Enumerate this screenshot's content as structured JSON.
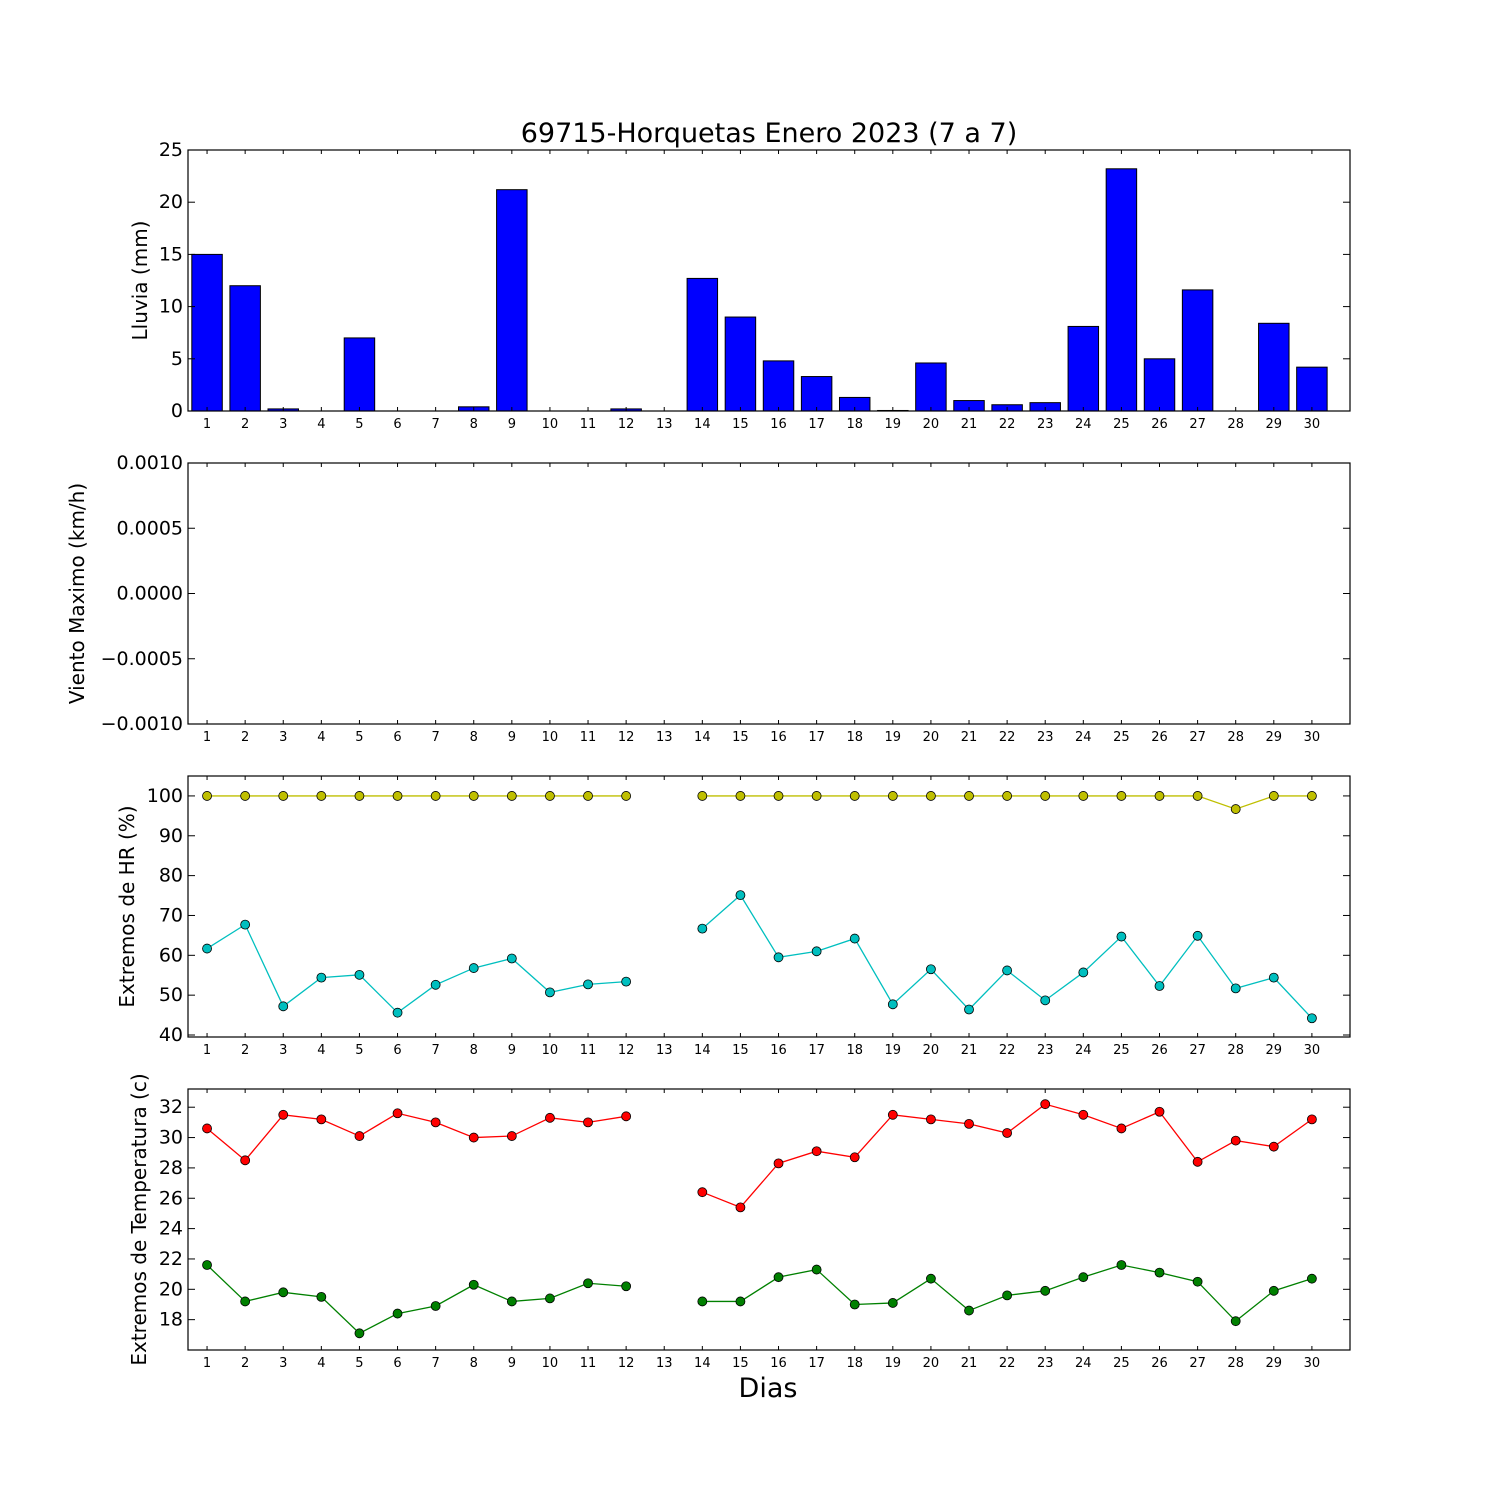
{
  "title": "69715-Horquetas Enero 2023  (7 a 7)",
  "xlabel": "Dias",
  "days": [
    1,
    2,
    3,
    4,
    5,
    6,
    7,
    8,
    9,
    10,
    11,
    12,
    13,
    14,
    15,
    16,
    17,
    18,
    19,
    20,
    21,
    22,
    23,
    24,
    25,
    26,
    27,
    28,
    29,
    30
  ],
  "colors": {
    "rain": "#0000ff",
    "hr_max": "#bfbf00",
    "hr_min": "#00bfbf",
    "t_max": "#ff0000",
    "t_min": "#008000"
  },
  "chart_data": [
    {
      "type": "bar",
      "title": "69715-Horquetas Enero 2023  (7 a 7)",
      "ylabel": "Lluvia (mm)",
      "ylim": [
        0,
        25
      ],
      "yticks": [
        "0",
        "5",
        "10",
        "15",
        "20",
        "25"
      ],
      "categories": [
        1,
        2,
        3,
        4,
        5,
        6,
        7,
        8,
        9,
        10,
        11,
        12,
        13,
        14,
        15,
        16,
        17,
        18,
        19,
        20,
        21,
        22,
        23,
        24,
        25,
        26,
        27,
        28,
        29,
        30
      ],
      "values": [
        15.0,
        12.0,
        0.2,
        0.0,
        7.0,
        0.0,
        0.0,
        0.4,
        21.2,
        0.0,
        0.0,
        0.2,
        0.0,
        12.7,
        9.0,
        4.8,
        3.3,
        1.3,
        0.05,
        4.6,
        1.0,
        0.6,
        0.8,
        8.1,
        23.2,
        5.0,
        11.6,
        0.0,
        8.4,
        4.2
      ]
    },
    {
      "type": "line",
      "ylabel": "Viento Maximo (km/h)",
      "ylim": [
        -0.001,
        0.001
      ],
      "yticks": [
        "−0.0010",
        "−0.0005",
        "0.0000",
        "0.0005",
        "0.0010"
      ],
      "x": [
        1,
        2,
        3,
        4,
        5,
        6,
        7,
        8,
        9,
        10,
        11,
        12,
        13,
        14,
        15,
        16,
        17,
        18,
        19,
        20,
        21,
        22,
        23,
        24,
        25,
        26,
        27,
        28,
        29,
        30
      ],
      "series": []
    },
    {
      "type": "line",
      "ylabel": "Extremos de HR (%)",
      "ylim": [
        39.5,
        105
      ],
      "yticks": [
        "40",
        "50",
        "60",
        "70",
        "80",
        "90",
        "100"
      ],
      "x": [
        1,
        2,
        3,
        4,
        5,
        6,
        7,
        8,
        9,
        10,
        11,
        12,
        13,
        14,
        15,
        16,
        17,
        18,
        19,
        20,
        21,
        22,
        23,
        24,
        25,
        26,
        27,
        28,
        29,
        30
      ],
      "series": [
        {
          "values": [
            100,
            100,
            100,
            100,
            100,
            100,
            100,
            100,
            100,
            100,
            100,
            100,
            null,
            100,
            100,
            100,
            100,
            100,
            100,
            100,
            100,
            100,
            100,
            100,
            100,
            100,
            100,
            96.7,
            100,
            100
          ]
        },
        {
          "values": [
            61.7,
            67.7,
            47.2,
            54.4,
            55.1,
            45.6,
            52.6,
            56.8,
            59.2,
            50.7,
            52.7,
            53.4,
            null,
            66.7,
            75.1,
            59.5,
            61.0,
            64.2,
            47.7,
            56.5,
            46.4,
            56.2,
            48.7,
            55.7,
            64.7,
            52.3,
            64.9,
            51.7,
            54.4,
            44.2
          ]
        }
      ]
    },
    {
      "type": "line",
      "ylabel": "Extremos de Temperatura (c)",
      "ylim": [
        16,
        33.2
      ],
      "yticks": [
        "18",
        "20",
        "22",
        "24",
        "26",
        "28",
        "30",
        "32"
      ],
      "x": [
        1,
        2,
        3,
        4,
        5,
        6,
        7,
        8,
        9,
        10,
        11,
        12,
        13,
        14,
        15,
        16,
        17,
        18,
        19,
        20,
        21,
        22,
        23,
        24,
        25,
        26,
        27,
        28,
        29,
        30
      ],
      "series": [
        {
          "values": [
            30.6,
            28.5,
            31.5,
            31.2,
            30.1,
            31.6,
            31.0,
            30.0,
            30.1,
            31.3,
            31.0,
            31.4,
            null,
            26.4,
            25.4,
            28.3,
            29.1,
            28.7,
            31.5,
            31.2,
            30.9,
            30.3,
            32.2,
            31.5,
            30.6,
            31.7,
            28.4,
            29.8,
            29.4,
            31.2
          ]
        },
        {
          "values": [
            21.6,
            19.2,
            19.8,
            19.5,
            17.1,
            18.4,
            18.9,
            20.3,
            19.2,
            19.4,
            20.4,
            20.2,
            null,
            19.2,
            19.2,
            20.8,
            21.3,
            19.0,
            19.1,
            20.7,
            18.6,
            19.6,
            19.9,
            20.8,
            21.6,
            21.1,
            20.5,
            17.9,
            19.9,
            20.7
          ]
        }
      ]
    }
  ]
}
